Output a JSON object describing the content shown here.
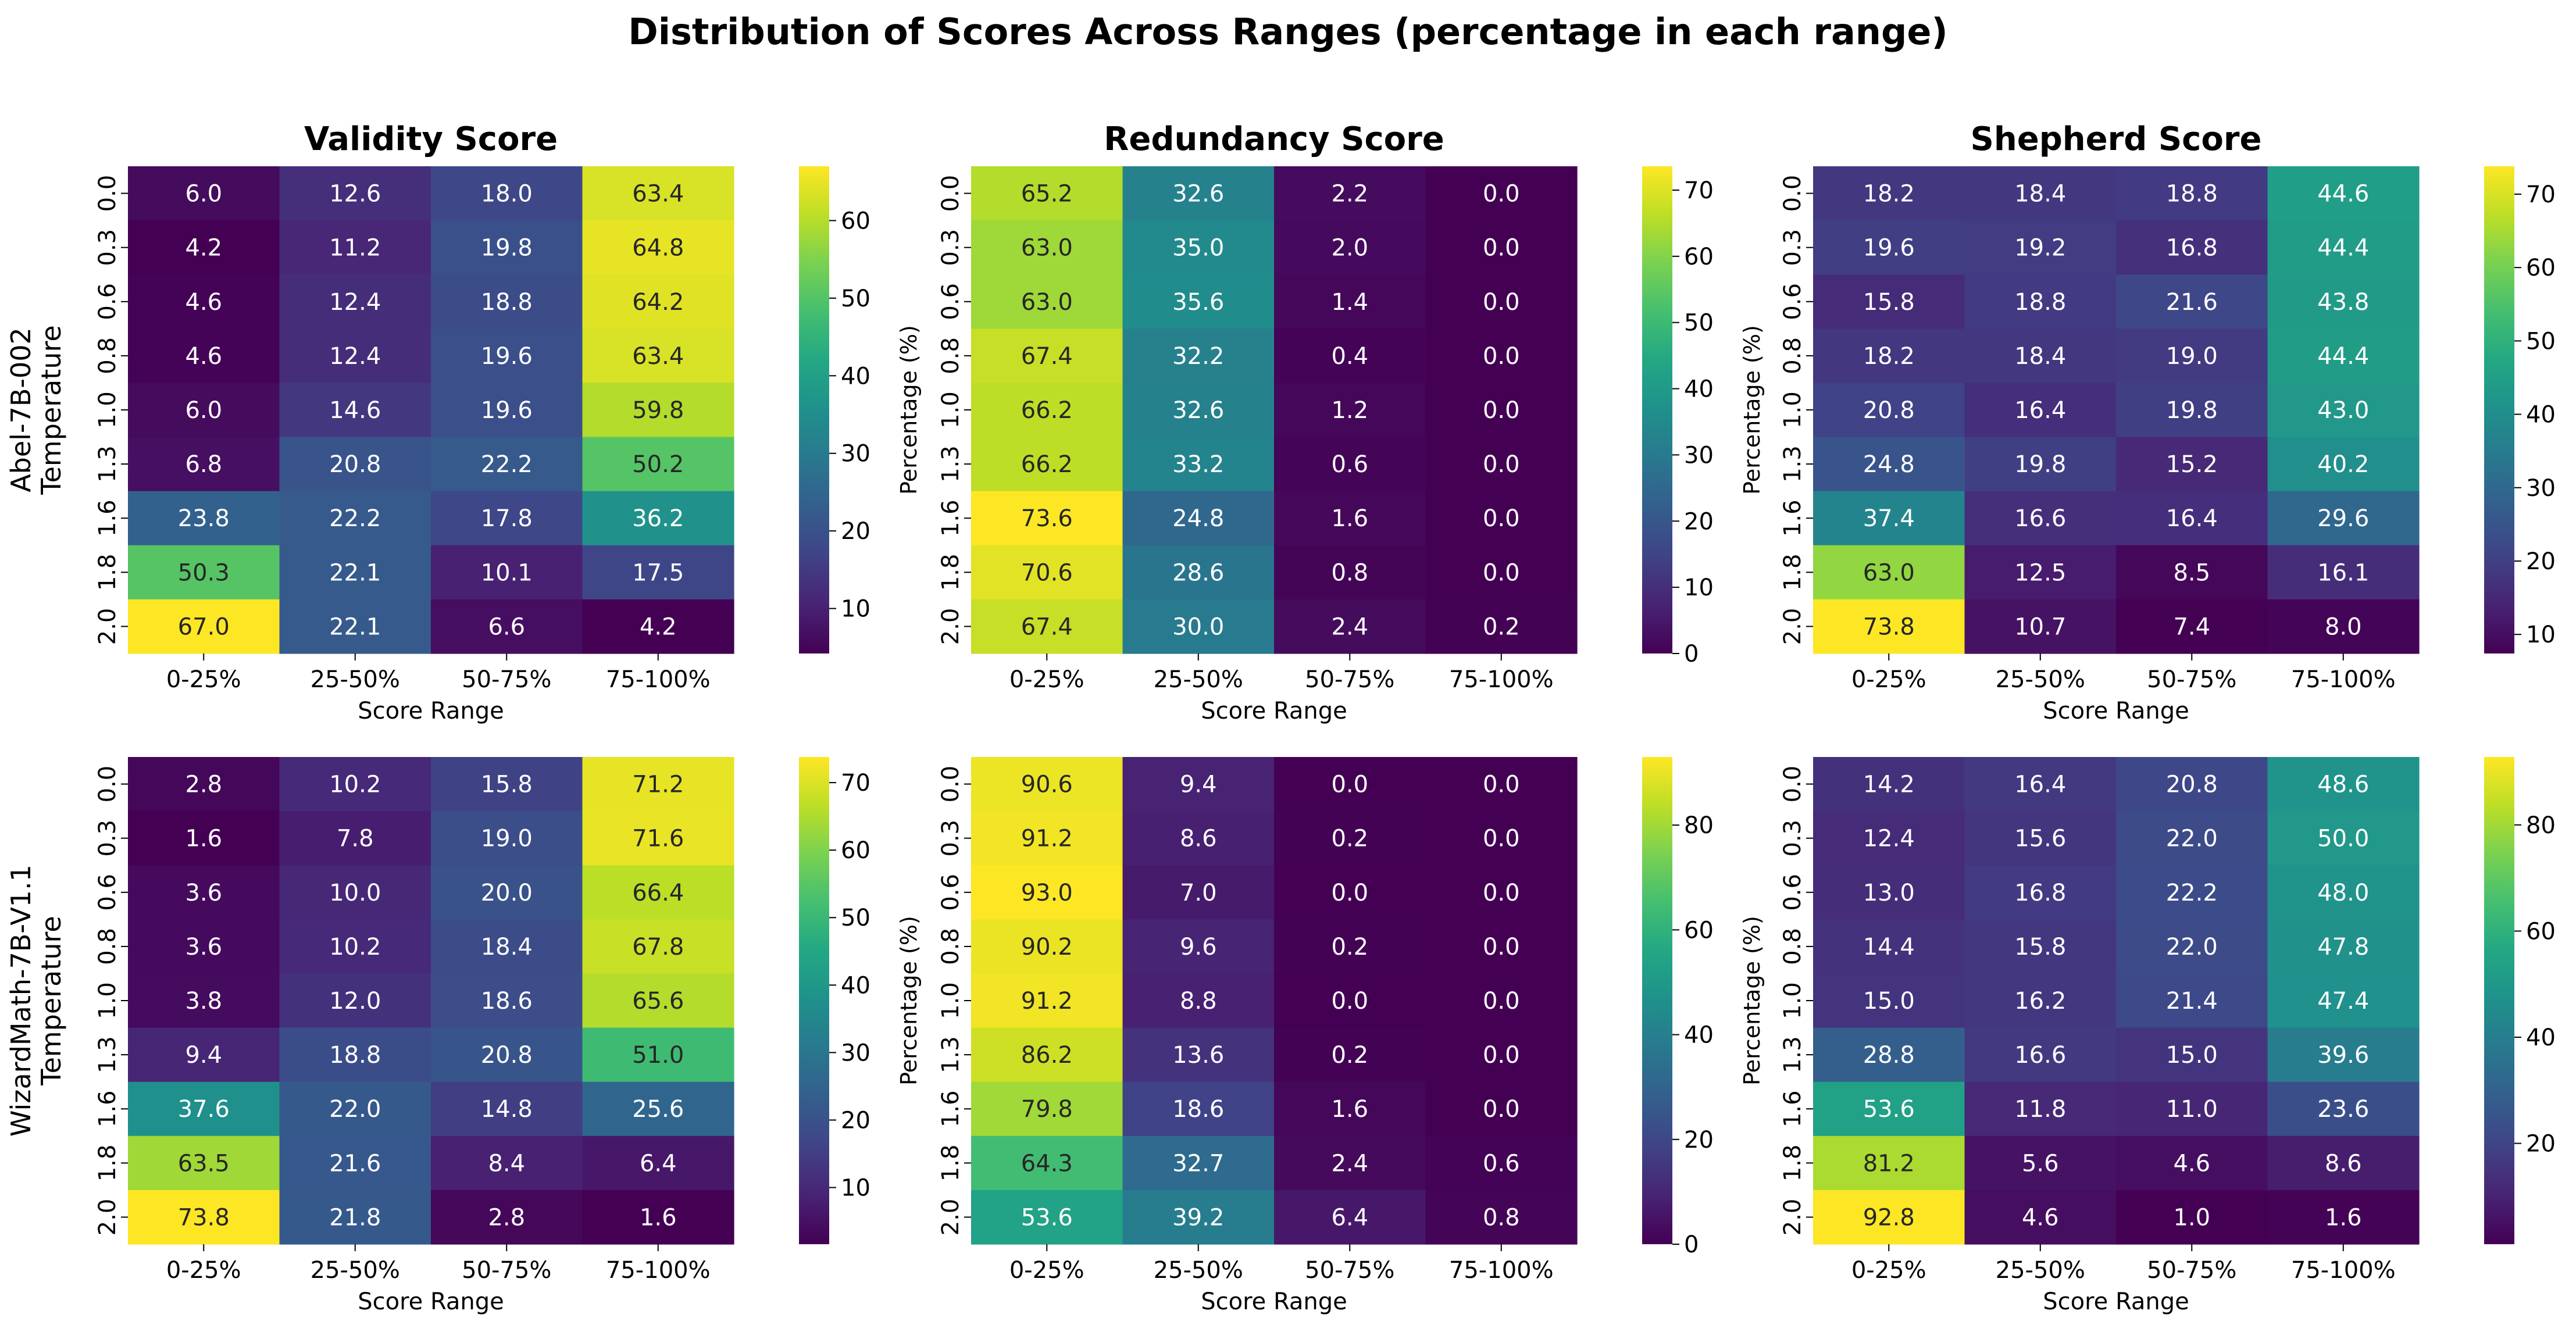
{
  "figure": {
    "title": "Distribution of Scores Across Ranges (percentage in each range)"
  },
  "chart_data": [
    {
      "type": "heatmap",
      "title": "Validity Score",
      "model": "Abel-7B-002",
      "ylabel": "Abel-7B-002\nTemperature",
      "xlabel": "Score Range",
      "x": [
        "0-25%",
        "25-50%",
        "50-75%",
        "75-100%"
      ],
      "y": [
        "0.0",
        "0.3",
        "0.6",
        "0.8",
        "1.0",
        "1.3",
        "1.6",
        "1.8",
        "2.0"
      ],
      "values": [
        [
          6.0,
          12.6,
          18.0,
          63.4
        ],
        [
          4.2,
          11.2,
          19.8,
          64.8
        ],
        [
          4.6,
          12.4,
          18.8,
          64.2
        ],
        [
          4.6,
          12.4,
          19.6,
          63.4
        ],
        [
          6.0,
          14.6,
          19.6,
          59.8
        ],
        [
          6.8,
          20.8,
          22.2,
          50.2
        ],
        [
          23.8,
          22.2,
          17.8,
          36.2
        ],
        [
          50.3,
          22.1,
          10.1,
          17.5
        ],
        [
          67.0,
          22.1,
          6.6,
          4.2
        ]
      ],
      "colorbar": {
        "label": "Percentage (%)",
        "ticks": [
          10,
          20,
          30,
          40,
          50,
          60
        ],
        "range": [
          4.2,
          67.0
        ]
      },
      "colormap": "viridis"
    },
    {
      "type": "heatmap",
      "title": "Redundancy Score",
      "model": "Abel-7B-002",
      "xlabel": "Score Range",
      "x": [
        "0-25%",
        "25-50%",
        "50-75%",
        "75-100%"
      ],
      "y": [
        "0.0",
        "0.3",
        "0.6",
        "0.8",
        "1.0",
        "1.3",
        "1.6",
        "1.8",
        "2.0"
      ],
      "values": [
        [
          65.2,
          32.6,
          2.2,
          0.0
        ],
        [
          63.0,
          35.0,
          2.0,
          0.0
        ],
        [
          63.0,
          35.6,
          1.4,
          0.0
        ],
        [
          67.4,
          32.2,
          0.4,
          0.0
        ],
        [
          66.2,
          32.6,
          1.2,
          0.0
        ],
        [
          66.2,
          33.2,
          0.6,
          0.0
        ],
        [
          73.6,
          24.8,
          1.6,
          0.0
        ],
        [
          70.6,
          28.6,
          0.8,
          0.0
        ],
        [
          67.4,
          30.0,
          2.4,
          0.2
        ]
      ],
      "colorbar": {
        "label": "Percentage (%)",
        "ticks": [
          0,
          10,
          20,
          30,
          40,
          50,
          60,
          70
        ],
        "range": [
          0.0,
          73.6
        ]
      },
      "colormap": "viridis"
    },
    {
      "type": "heatmap",
      "title": "Shepherd Score",
      "model": "Abel-7B-002",
      "xlabel": "Score Range",
      "x": [
        "0-25%",
        "25-50%",
        "50-75%",
        "75-100%"
      ],
      "y": [
        "0.0",
        "0.3",
        "0.6",
        "0.8",
        "1.0",
        "1.3",
        "1.6",
        "1.8",
        "2.0"
      ],
      "values": [
        [
          18.2,
          18.4,
          18.8,
          44.6
        ],
        [
          19.6,
          19.2,
          16.8,
          44.4
        ],
        [
          15.8,
          18.8,
          21.6,
          43.8
        ],
        [
          18.2,
          18.4,
          19.0,
          44.4
        ],
        [
          20.8,
          16.4,
          19.8,
          43.0
        ],
        [
          24.8,
          19.8,
          15.2,
          40.2
        ],
        [
          37.4,
          16.6,
          16.4,
          29.6
        ],
        [
          63.0,
          12.5,
          8.5,
          16.1
        ],
        [
          73.8,
          10.7,
          7.4,
          8.0
        ]
      ],
      "colorbar": {
        "label": "Percentage (%)",
        "ticks": [
          10,
          20,
          30,
          40,
          50,
          60,
          70
        ],
        "range": [
          7.4,
          73.8
        ]
      },
      "colormap": "viridis"
    },
    {
      "type": "heatmap",
      "model": "WizardMath-7B-V1.1",
      "ylabel": "WizardMath-7B-V1.1\nTemperature",
      "xlabel": "Score Range",
      "x": [
        "0-25%",
        "25-50%",
        "50-75%",
        "75-100%"
      ],
      "y": [
        "0.0",
        "0.3",
        "0.6",
        "0.8",
        "1.0",
        "1.3",
        "1.6",
        "1.8",
        "2.0"
      ],
      "values": [
        [
          2.8,
          10.2,
          15.8,
          71.2
        ],
        [
          1.6,
          7.8,
          19.0,
          71.6
        ],
        [
          3.6,
          10.0,
          20.0,
          66.4
        ],
        [
          3.6,
          10.2,
          18.4,
          67.8
        ],
        [
          3.8,
          12.0,
          18.6,
          65.6
        ],
        [
          9.4,
          18.8,
          20.8,
          51.0
        ],
        [
          37.6,
          22.0,
          14.8,
          25.6
        ],
        [
          63.5,
          21.6,
          8.4,
          6.4
        ],
        [
          73.8,
          21.8,
          2.8,
          1.6
        ]
      ],
      "colorbar": {
        "label": "Percentage (%)",
        "ticks": [
          10,
          20,
          30,
          40,
          50,
          60,
          70
        ],
        "range": [
          1.6,
          73.8
        ]
      },
      "colormap": "viridis"
    },
    {
      "type": "heatmap",
      "model": "WizardMath-7B-V1.1",
      "xlabel": "Score Range",
      "x": [
        "0-25%",
        "25-50%",
        "50-75%",
        "75-100%"
      ],
      "y": [
        "0.0",
        "0.3",
        "0.6",
        "0.8",
        "1.0",
        "1.3",
        "1.6",
        "1.8",
        "2.0"
      ],
      "values": [
        [
          90.6,
          9.4,
          0.0,
          0.0
        ],
        [
          91.2,
          8.6,
          0.2,
          0.0
        ],
        [
          93.0,
          7.0,
          0.0,
          0.0
        ],
        [
          90.2,
          9.6,
          0.2,
          0.0
        ],
        [
          91.2,
          8.8,
          0.0,
          0.0
        ],
        [
          86.2,
          13.6,
          0.2,
          0.0
        ],
        [
          79.8,
          18.6,
          1.6,
          0.0
        ],
        [
          64.3,
          32.7,
          2.4,
          0.6
        ],
        [
          53.6,
          39.2,
          6.4,
          0.8
        ]
      ],
      "colorbar": {
        "label": "Percentage (%)",
        "ticks": [
          0,
          20,
          40,
          60,
          80
        ],
        "range": [
          0.0,
          93.0
        ]
      },
      "colormap": "viridis"
    },
    {
      "type": "heatmap",
      "model": "WizardMath-7B-V1.1",
      "xlabel": "Score Range",
      "x": [
        "0-25%",
        "25-50%",
        "50-75%",
        "75-100%"
      ],
      "y": [
        "0.0",
        "0.3",
        "0.6",
        "0.8",
        "1.0",
        "1.3",
        "1.6",
        "1.8",
        "2.0"
      ],
      "values": [
        [
          14.2,
          16.4,
          20.8,
          48.6
        ],
        [
          12.4,
          15.6,
          22.0,
          50.0
        ],
        [
          13.0,
          16.8,
          22.2,
          48.0
        ],
        [
          14.4,
          15.8,
          22.0,
          47.8
        ],
        [
          15.0,
          16.2,
          21.4,
          47.4
        ],
        [
          28.8,
          16.6,
          15.0,
          39.6
        ],
        [
          53.6,
          11.8,
          11.0,
          23.6
        ],
        [
          81.2,
          5.6,
          4.6,
          8.6
        ],
        [
          92.8,
          4.6,
          1.0,
          1.6
        ]
      ],
      "colorbar": {
        "label": "Percentage (%)",
        "ticks": [
          20,
          40,
          60,
          80
        ],
        "range": [
          1.0,
          92.8
        ]
      },
      "colormap": "viridis"
    }
  ]
}
